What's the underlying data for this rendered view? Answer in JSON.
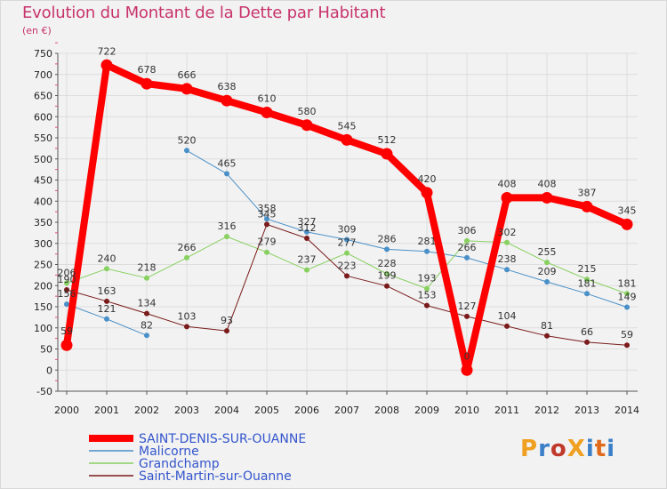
{
  "header": {
    "title": "Evolution du Montant de la Dette par Habitant",
    "unit": "(en €)"
  },
  "logo": {
    "text": "ProXiti",
    "colors": [
      "#f0a020",
      "#3a7fc8",
      "#c0392b",
      "#f0a020",
      "#3a7fc8",
      "#e06a1a",
      "#3a7fc8"
    ]
  },
  "colors": {
    "title": "#c8336b",
    "grid": "#dddddd",
    "axis": "#555555"
  },
  "chart_data": {
    "type": "line",
    "title": "Evolution du Montant de la Dette par Habitant",
    "ylabel": "(en €)",
    "xlabel": "",
    "x": [
      "2000",
      "2001",
      "2002",
      "2003",
      "2004",
      "2005",
      "2006",
      "2007",
      "2008",
      "2009",
      "2010",
      "2011",
      "2012",
      "2013",
      "2014"
    ],
    "ylim": [
      -50,
      750
    ],
    "yticks": [
      -50,
      0,
      50,
      100,
      150,
      200,
      250,
      300,
      350,
      400,
      450,
      500,
      550,
      600,
      650,
      700,
      750
    ],
    "grid": true,
    "legend_position": "bottom-left",
    "series": [
      {
        "name": "SAINT-DENIS-SUR-OUANNE",
        "color": "#ff0000",
        "width": 8,
        "values": [
          59,
          722,
          678,
          666,
          638,
          610,
          580,
          545,
          512,
          420,
          0,
          408,
          408,
          387,
          345
        ],
        "labels": [
          "59",
          "722",
          "678",
          "666",
          "638",
          "610",
          "580",
          "545",
          "512",
          "420",
          "0",
          "408",
          "408",
          "387",
          "345"
        ]
      },
      {
        "name": "Malicorne",
        "color": "#4a90c8",
        "width": 1,
        "values": [
          156,
          121,
          82,
          520,
          465,
          358,
          327,
          309,
          286,
          281,
          266,
          238,
          209,
          181,
          149
        ],
        "labels": [
          "156",
          "121",
          "82",
          "520",
          "465",
          "358",
          "327",
          "309",
          "286",
          "281",
          "266",
          "238",
          "209",
          "181",
          "149"
        ],
        "gaps": [
          2
        ]
      },
      {
        "name": "Grandchamp",
        "color": "#88d060",
        "width": 1,
        "values": [
          206,
          240,
          218,
          266,
          316,
          279,
          237,
          277,
          228,
          193,
          306,
          302,
          255,
          215,
          181
        ],
        "labels": [
          "206",
          "240",
          "218",
          "266",
          "316",
          "279",
          "237",
          "277",
          "228",
          "193",
          "306",
          "302",
          "255",
          "215",
          "181"
        ]
      },
      {
        "name": "Saint-Martin-sur-Ouanne",
        "color": "#7a1a1a",
        "width": 1,
        "values": [
          190,
          163,
          134,
          103,
          93,
          345,
          312,
          223,
          199,
          153,
          127,
          104,
          81,
          66,
          59
        ],
        "labels": [
          "190",
          "163",
          "134",
          "103",
          "93",
          "345",
          "312",
          "223",
          "199",
          "153",
          "127",
          "104",
          "81",
          "66",
          "59"
        ]
      }
    ]
  }
}
